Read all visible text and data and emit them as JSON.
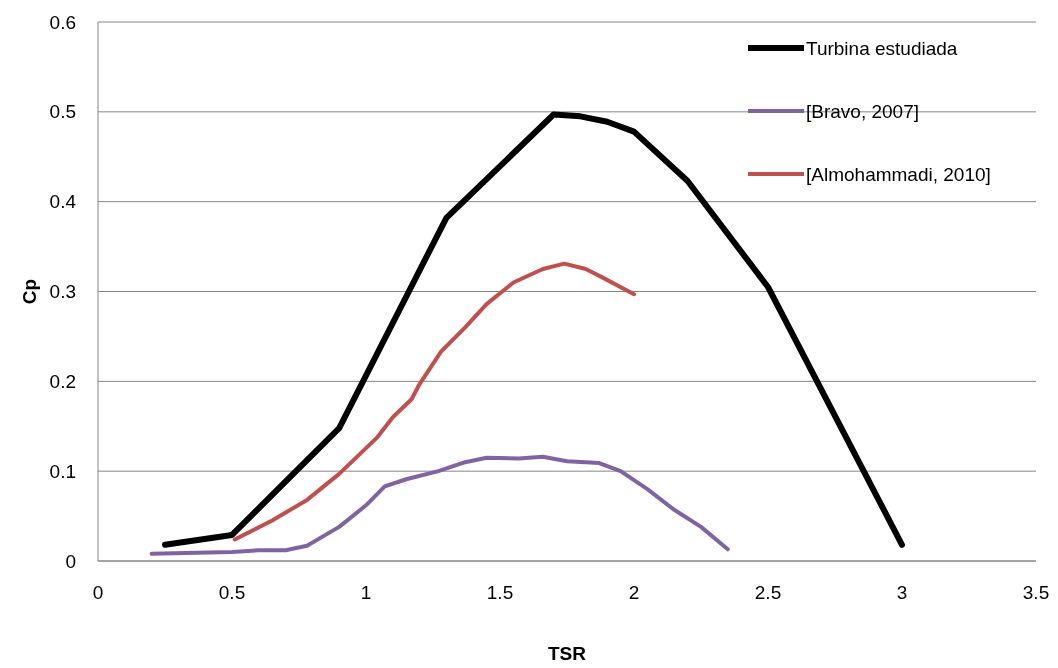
{
  "chart_data": {
    "type": "line",
    "xlabel": "TSR",
    "ylabel": "Cp",
    "xlim": [
      0,
      3.5
    ],
    "xticks": [
      0,
      0.5,
      1,
      1.5,
      2,
      2.5,
      3,
      3.5
    ],
    "ylim": [
      0,
      0.6
    ],
    "yticks": [
      0,
      0.1,
      0.2,
      0.3,
      0.4,
      0.5,
      0.6
    ],
    "grid": "y",
    "legend": "top right",
    "marker": "none",
    "line_style": "solid",
    "series": [
      {
        "name": "Turbina estudiada",
        "color": "#000000",
        "x": [
          0.25,
          0.5,
          0.9,
          1.3,
          1.7,
          1.8,
          1.9,
          2.0,
          2.2,
          2.5,
          3.0
        ],
        "values": [
          0.018,
          0.029,
          0.148,
          0.382,
          0.497,
          0.495,
          0.489,
          0.478,
          0.423,
          0.305,
          0.018
        ]
      },
      {
        "name": "[Bravo, 2007]",
        "color": "#8064a2",
        "x": [
          0.2,
          0.5,
          0.6,
          0.7,
          0.78,
          0.9,
          1.0,
          1.07,
          1.15,
          1.27,
          1.37,
          1.45,
          1.57,
          1.66,
          1.75,
          1.87,
          1.95,
          2.05,
          2.15,
          2.25,
          2.35
        ],
        "values": [
          0.008,
          0.01,
          0.012,
          0.012,
          0.017,
          0.038,
          0.062,
          0.083,
          0.091,
          0.1,
          0.11,
          0.115,
          0.114,
          0.116,
          0.111,
          0.109,
          0.1,
          0.08,
          0.057,
          0.038,
          0.013
        ]
      },
      {
        "name": "[Almohammadi, 2010]",
        "color": "#c0504d",
        "x": [
          0.51,
          0.65,
          0.78,
          0.9,
          1.04,
          1.1,
          1.17,
          1.2,
          1.28,
          1.37,
          1.45,
          1.55,
          1.66,
          1.74,
          1.82,
          1.88,
          2.0
        ],
        "values": [
          0.024,
          0.045,
          0.068,
          0.097,
          0.137,
          0.16,
          0.18,
          0.197,
          0.233,
          0.26,
          0.286,
          0.31,
          0.325,
          0.331,
          0.325,
          0.316,
          0.297
        ]
      }
    ]
  }
}
